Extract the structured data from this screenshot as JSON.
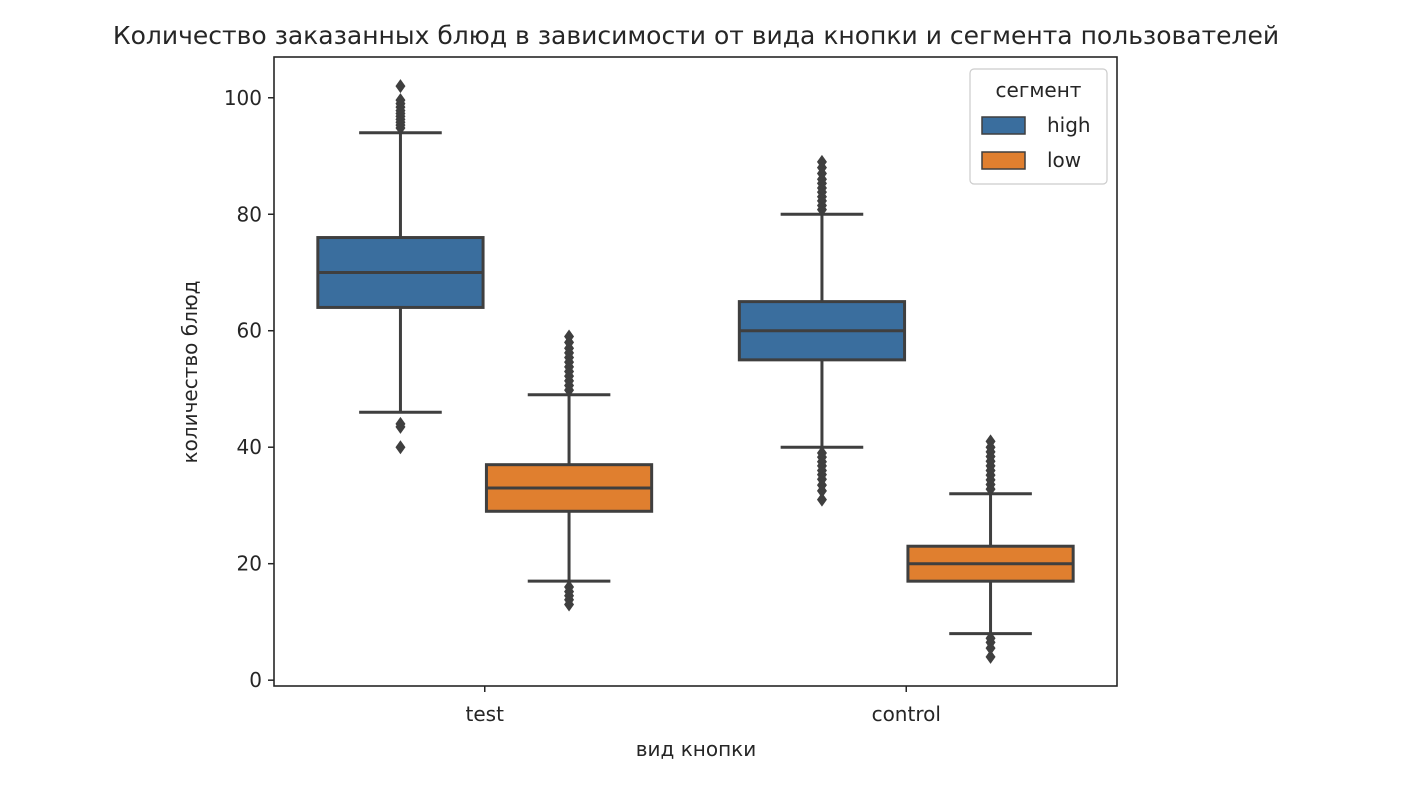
{
  "chart_data": {
    "type": "boxplot",
    "title": "Количество заказанных блюд в зависимости от вида кнопки и сегмента пользователей",
    "xlabel": "вид кнопки",
    "ylabel": "количество блюд",
    "categories": [
      "test",
      "control"
    ],
    "ylim": [
      -1,
      107
    ],
    "yticks": [
      0,
      20,
      40,
      60,
      80,
      100
    ],
    "grid": false,
    "legend": {
      "title": "сегмент",
      "placement": "top-right"
    },
    "series": [
      {
        "name": "high",
        "color": "#3a6e9e",
        "boxes": [
          {
            "category": "test",
            "whisker_low": 46,
            "q1": 64,
            "median": 70,
            "q3": 76,
            "whisker_high": 94,
            "outliers": [
              40,
              43.5,
              44,
              94.8,
              95.3,
              95.8,
              96.3,
              96.8,
              97.3,
              97.8,
              98.4,
              99,
              99.6,
              102
            ]
          },
          {
            "category": "control",
            "whisker_low": 40,
            "q1": 55,
            "median": 60,
            "q3": 65,
            "whisker_high": 80,
            "outliers": [
              31,
              32.5,
              33.5,
              34.5,
              35.3,
              36,
              36.8,
              37.5,
              38.3,
              39,
              80.8,
              81.5,
              82.3,
              83,
              83.8,
              84.5,
              85.3,
              86,
              87,
              88,
              89
            ]
          }
        ]
      },
      {
        "name": "low",
        "color": "#e07f2f",
        "boxes": [
          {
            "category": "test",
            "whisker_low": 17,
            "q1": 29,
            "median": 33,
            "q3": 37,
            "whisker_high": 49,
            "outliers": [
              13,
              13.8,
              14.5,
              15.2,
              16,
              49.8,
              50.6,
              51.4,
              52.2,
              53,
              53.8,
              54.6,
              55.4,
              56.2,
              57,
              58,
              59
            ]
          },
          {
            "category": "control",
            "whisker_low": 8,
            "q1": 17,
            "median": 20,
            "q3": 23,
            "whisker_high": 32,
            "outliers": [
              4,
              5.5,
              6.5,
              7.2,
              32.8,
              33.6,
              34.4,
              35.2,
              36,
              36.8,
              37.6,
              38.4,
              39.2,
              40,
              41
            ]
          }
        ]
      }
    ]
  }
}
